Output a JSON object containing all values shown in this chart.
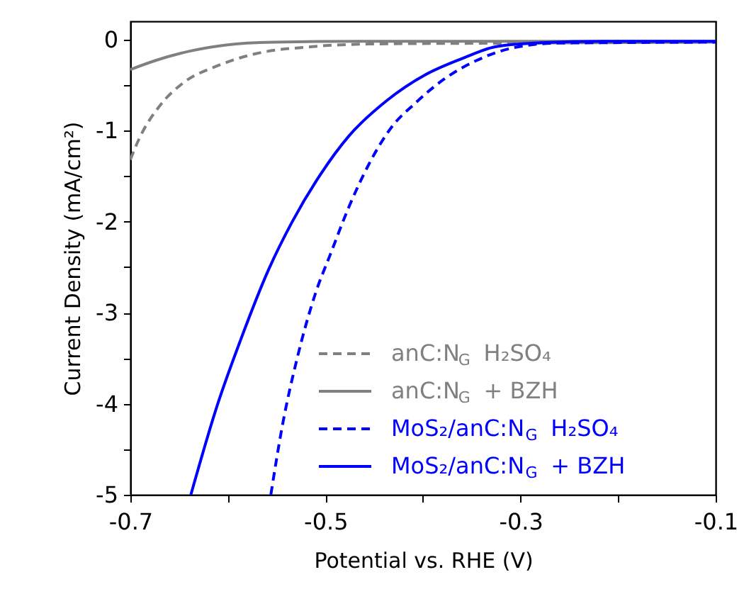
{
  "chart_data": {
    "type": "line",
    "xlabel": "Potential vs. RHE (V)",
    "ylabel": "Current Density (mA/cm²)",
    "xlim": [
      -0.7,
      -0.1
    ],
    "xticks": [
      -0.7,
      {
        "value": -0.6,
        "label": null
      },
      -0.5,
      {
        "value": -0.4,
        "label": null
      },
      -0.3,
      {
        "value": -0.2,
        "label": null
      },
      -0.1
    ],
    "ylim": [
      -5,
      0.2
    ],
    "yticks": [
      -5,
      {
        "value": -4.5,
        "label": null
      },
      -4,
      {
        "value": -3.5,
        "label": null
      },
      -3,
      {
        "value": -2.5,
        "label": null
      },
      -2,
      {
        "value": -1.5,
        "label": null
      },
      -1,
      {
        "value": -0.5,
        "label": null
      },
      0
    ],
    "grid": false,
    "legend": "bottom right",
    "series": [
      {
        "name": "anC:N$_{G}$  H₂SO₄",
        "color": "#808080",
        "line_style": "dashed",
        "x": [
          -0.7,
          -0.691,
          -0.67,
          -0.645,
          -0.611,
          -0.573,
          -0.515,
          -0.456,
          -0.311,
          -0.1
        ],
        "values": [
          -1.32,
          -1.09,
          -0.73,
          -0.47,
          -0.29,
          -0.16,
          -0.08,
          -0.05,
          -0.04,
          -0.03
        ]
      },
      {
        "name": "anC:N$_{G}$  + BZH",
        "color": "#808080",
        "line_style": "solid",
        "x": [
          -0.7,
          -0.674,
          -0.64,
          -0.602,
          -0.553,
          -0.456,
          -0.1
        ],
        "values": [
          -0.33,
          -0.23,
          -0.13,
          -0.06,
          -0.03,
          -0.02,
          -0.02
        ]
      },
      {
        "name": "MoS₂/anC:N$_{G}$  H₂SO₄",
        "color": "#0000ff",
        "line_style": "dashed",
        "x": [
          -0.556,
          -0.544,
          -0.529,
          -0.51,
          -0.495,
          -0.476,
          -0.456,
          -0.432,
          -0.408,
          -0.379,
          -0.345,
          -0.311,
          -0.263,
          -0.1
        ],
        "values": [
          -5,
          -4.23,
          -3.5,
          -2.78,
          -2.36,
          -1.84,
          -1.38,
          -0.96,
          -0.7,
          -0.44,
          -0.23,
          -0.1,
          -0.04,
          -0.03
        ]
      },
      {
        "name": "MoS₂/anC:N$_{G}$  + BZH",
        "color": "#0000ff",
        "line_style": "solid",
        "x": [
          -0.638,
          -0.611,
          -0.587,
          -0.558,
          -0.534,
          -0.505,
          -0.476,
          -0.437,
          -0.398,
          -0.36,
          -0.326,
          -0.287,
          -0.214,
          -0.1
        ],
        "values": [
          -5,
          -4.02,
          -3.3,
          -2.52,
          -2.0,
          -1.48,
          -1.06,
          -0.67,
          -0.39,
          -0.21,
          -0.08,
          -0.04,
          -0.02,
          -0.02
        ]
      }
    ]
  }
}
